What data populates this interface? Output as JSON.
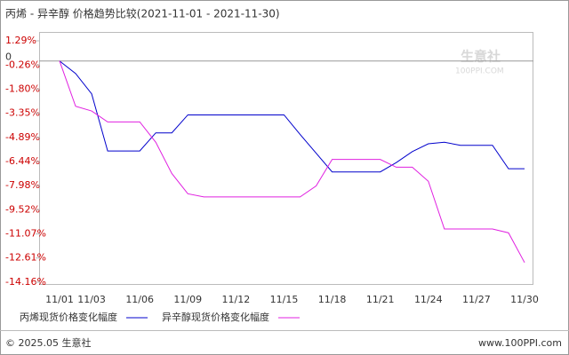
{
  "chart_data": {
    "type": "line",
    "title": "丙烯 - 异辛醇 价格趋势比较(2021-11-01 - 2021-11-30)",
    "watermark": {
      "name": "生意社",
      "site": "100PPI.COM"
    },
    "categories": [
      "11/01",
      null,
      "11/03",
      null,
      null,
      "11/06",
      null,
      null,
      "11/09",
      null,
      null,
      "11/12",
      null,
      null,
      "11/15",
      null,
      null,
      "11/18",
      null,
      null,
      "11/21",
      null,
      null,
      "11/24",
      null,
      null,
      "11/27",
      null,
      null,
      "11/30"
    ],
    "series": [
      {
        "name": "丙烯现货价格变化幅度",
        "color": "#0000cc",
        "values": [
          0,
          -0.8,
          -2.1,
          -5.76,
          -5.76,
          -5.76,
          -4.6,
          -4.6,
          -3.45,
          -3.45,
          -3.45,
          -3.45,
          -3.45,
          -3.45,
          -3.45,
          -4.7,
          -5.9,
          -7.1,
          -7.1,
          -7.1,
          -7.1,
          -6.5,
          -5.8,
          -5.3,
          -5.2,
          -5.4,
          -5.4,
          -5.4,
          -6.9,
          -6.9
        ]
      },
      {
        "name": "异辛醇现货价格变化幅度",
        "color": "#e020e0",
        "values": [
          0,
          -2.9,
          -3.2,
          -3.9,
          -3.9,
          -3.9,
          -5.2,
          -7.2,
          -8.5,
          -8.7,
          -8.7,
          -8.7,
          -8.7,
          -8.7,
          -8.7,
          -8.7,
          -8.0,
          -6.3,
          -6.3,
          -6.3,
          -6.3,
          -6.8,
          -6.8,
          -7.7,
          -10.75,
          -10.75,
          -10.75,
          -10.75,
          -11.0,
          -12.9
        ]
      }
    ],
    "ylim": [
      -14.16,
      1.29
    ],
    "yticks": [
      {
        "value": 1.29,
        "label": "1.29%"
      },
      {
        "value": -0.26,
        "label": "-0.26%"
      },
      {
        "value": -1.8,
        "label": "-1.80%"
      },
      {
        "value": -3.35,
        "label": "-3.35%"
      },
      {
        "value": -4.89,
        "label": "-4.89%"
      },
      {
        "value": -6.44,
        "label": "-6.44%"
      },
      {
        "value": -7.98,
        "label": "-7.98%"
      },
      {
        "value": -9.52,
        "label": "-9.52%"
      },
      {
        "value": -11.07,
        "label": "-11.07%"
      },
      {
        "value": -12.61,
        "label": "-12.61%"
      },
      {
        "value": -14.16,
        "label": "-14.16%"
      }
    ],
    "zero_line": {
      "value": 0,
      "label": "0"
    },
    "footer": {
      "left": "© 2025.05 生意社",
      "right": "www.100PPI.com"
    }
  }
}
